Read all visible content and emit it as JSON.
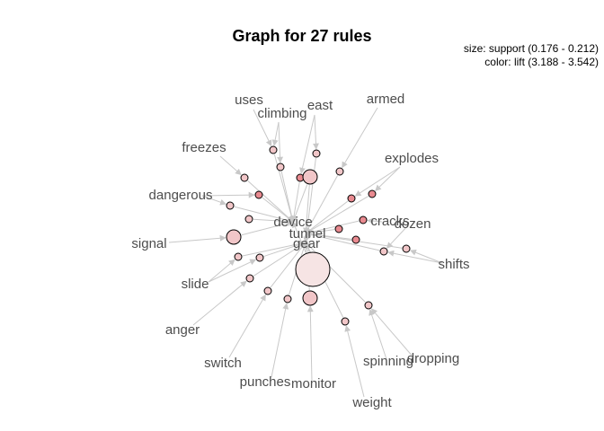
{
  "title": "Graph for 27 rules",
  "legend": {
    "size": "size: support (0.176 - 0.212)",
    "color": "color: lift (3.188 - 3.542)"
  },
  "colors": {
    "edge": "#c8c8c8",
    "label": "#4d4d4d",
    "node_light": "#f6e4e4",
    "node_mid": "#f1c6c8",
    "node_dark": "#e98a90"
  },
  "items": [
    {
      "label": "uses"
    },
    {
      "label": "climbing"
    },
    {
      "label": "east"
    },
    {
      "label": "armed"
    },
    {
      "label": "freezes"
    },
    {
      "label": "explodes"
    },
    {
      "label": "dangerous"
    },
    {
      "label": "device"
    },
    {
      "label": "cracks"
    },
    {
      "label": "dozen"
    },
    {
      "label": "tunnel"
    },
    {
      "label": "gear"
    },
    {
      "label": "signal"
    },
    {
      "label": "shifts"
    },
    {
      "label": "slide"
    },
    {
      "label": "anger"
    },
    {
      "label": "switch"
    },
    {
      "label": "dropping"
    },
    {
      "label": "spinning"
    },
    {
      "label": "punches"
    },
    {
      "label": "monitor"
    },
    {
      "label": "weight"
    }
  ]
}
